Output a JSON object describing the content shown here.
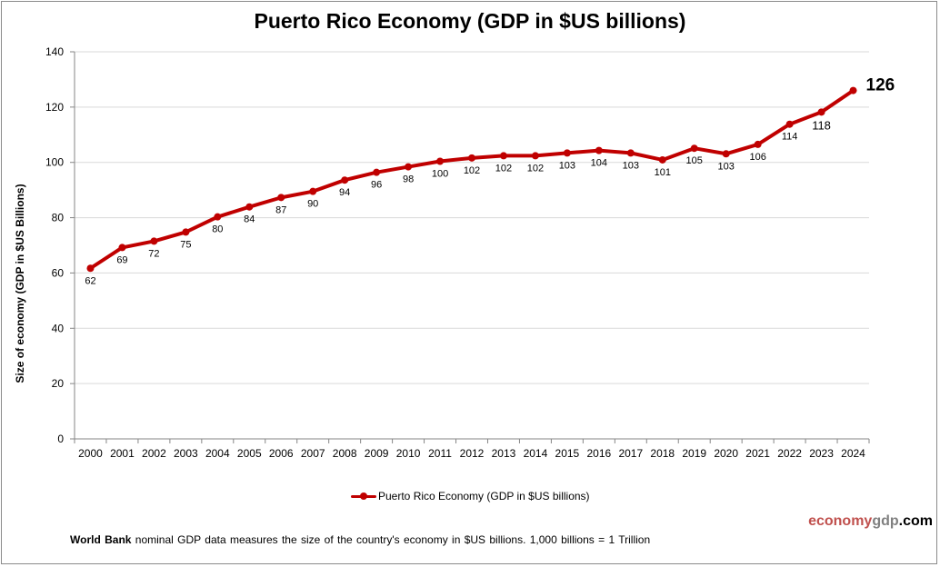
{
  "chart_data": {
    "type": "line",
    "title": "Puerto Rico Economy (GDP in $US billions)",
    "xlabel": "",
    "ylabel": "Size of economy (GDP in $US Billions)",
    "categories": [
      "2000",
      "2001",
      "2002",
      "2003",
      "2004",
      "2005",
      "2006",
      "2007",
      "2008",
      "2009",
      "2010",
      "2011",
      "2012",
      "2013",
      "2014",
      "2015",
      "2016",
      "2017",
      "2018",
      "2019",
      "2020",
      "2021",
      "2022",
      "2023",
      "2024"
    ],
    "series": [
      {
        "name": "Puerto Rico Economy (GDP in $US billions)",
        "color": "#c00000",
        "values": [
          61.7,
          69.2,
          71.5,
          74.8,
          80.3,
          83.9,
          87.3,
          89.5,
          93.6,
          96.4,
          98.4,
          100.4,
          101.6,
          102.4,
          102.4,
          103.4,
          104.3,
          103.4,
          100.9,
          105.1,
          103.1,
          106.5,
          113.8,
          118.2,
          126.0
        ]
      }
    ],
    "data_labels": [
      "62",
      "69",
      "72",
      "75",
      "80",
      "84",
      "87",
      "90",
      "94",
      "96",
      "98",
      "100",
      "102",
      "102",
      "102",
      "103",
      "104",
      "103",
      "101",
      "105",
      "103",
      "106",
      "114",
      "118",
      "126"
    ],
    "yticks": [
      0,
      20,
      40,
      60,
      80,
      100,
      120,
      140
    ],
    "ylim": [
      0,
      140
    ],
    "grid": true,
    "legend": "bottom-center"
  },
  "footer": {
    "source_bold": "World Bank",
    "source_text": " nominal GDP data  measures the size of the country's economy in $US billions. 1,000 billions = 1 Trillion",
    "brand_part1": "economy",
    "brand_part2": "gdp",
    "brand_part3": ".com"
  }
}
